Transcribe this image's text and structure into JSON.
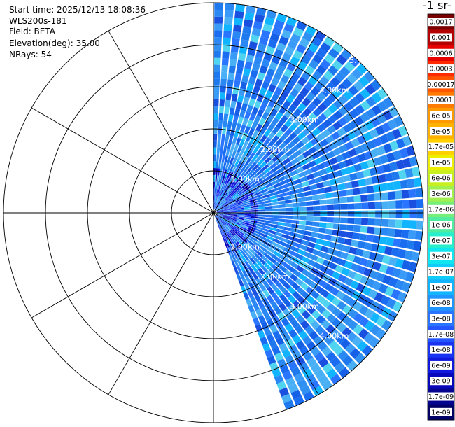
{
  "info": {
    "start_time": "Start time: 2025/12/13 18:08:36",
    "instrument": "WLS200s-181",
    "field": "Field: BETA",
    "elevation": "Elevation(deg): 35.00",
    "nrays": "NRays: 54"
  },
  "colorbar": {
    "title": "-1 sr-",
    "labels": [
      "0.0017",
      "0.001",
      "0.0006",
      "0.0003",
      "0.00017",
      "0.0001",
      "6e-05",
      "3e-05",
      "1.7e-05",
      "1e-05",
      "6e-06",
      "3e-06",
      "1.7e-06",
      "1e-06",
      "6e-07",
      "3e-07",
      "1.7e-07",
      "1e-07",
      "6e-08",
      "3e-08",
      "1.7e-08",
      "1e-08",
      "6e-09",
      "3e-09",
      "1.7e-09",
      "1e-09"
    ],
    "colors": [
      "#7a0000",
      "#b30000",
      "#e60000",
      "#ff2a00",
      "#ff5500",
      "#ff7a00",
      "#ff9900",
      "#ffb300",
      "#ffd000",
      "#eeee00",
      "#c8f020",
      "#a0f050",
      "#78ee7a",
      "#50eca0",
      "#28eecc",
      "#10e6f0",
      "#10ccf8",
      "#10b4ff",
      "#2095ff",
      "#2a75ff",
      "#2555ff",
      "#1a33f0",
      "#1018dd",
      "#0808bb",
      "#050590",
      "#020266"
    ]
  },
  "chart_data": {
    "type": "heatmap",
    "projection": "polar PPI scan",
    "field": "BETA",
    "elevation_deg": 35.0,
    "n_rays": 54,
    "range_unit": "km",
    "range_ring_labels": [
      "1.00km",
      "2.00km",
      "3.00km",
      "4.00km",
      "5."
    ],
    "azimuth_start_deg": 0,
    "azimuth_end_deg": 160,
    "max_range_km": 5.0,
    "dominant_value_range": [
      "3e-08",
      "1e-07"
    ],
    "color_scale": "log"
  }
}
